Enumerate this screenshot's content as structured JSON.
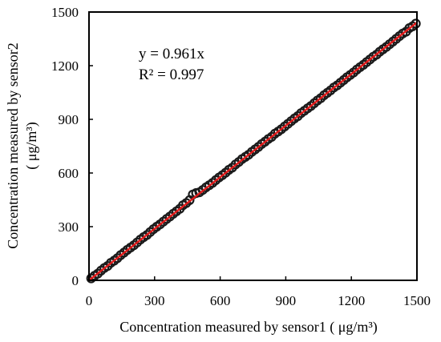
{
  "chart_data": {
    "type": "scatter",
    "title": "",
    "xlabel": "Concentration measured by sensor1 ( μg/m³)",
    "ylabel_line1": "Concentration measured by sensor2",
    "ylabel_line2": "( μg/m³)",
    "xlim": [
      0,
      1500
    ],
    "ylim": [
      0,
      1500
    ],
    "xticks": [
      "0",
      "300",
      "600",
      "900",
      "1200",
      "1500"
    ],
    "yticks": [
      "0",
      "300",
      "600",
      "900",
      "1200",
      "1500"
    ],
    "grid": false,
    "legend": "none",
    "marker": "open-circle",
    "marker_color": "#1a1a1a",
    "fit_line_color": "#e01b1b",
    "fit": {
      "slope": 0.961,
      "x_range": [
        0,
        1500
      ]
    },
    "annotations": [
      "y = 0.961x",
      "R² = 0.997"
    ],
    "series": [
      {
        "x": [
          10,
          25,
          40,
          55,
          70,
          85,
          100,
          115,
          130,
          145,
          160,
          175,
          190,
          205,
          220,
          235,
          250,
          265,
          280,
          295,
          310,
          325,
          340,
          355,
          370,
          385,
          400,
          415,
          430,
          445,
          460,
          475,
          490,
          505,
          520,
          535,
          550,
          565,
          580,
          595,
          610,
          625,
          640,
          655,
          670,
          685,
          700,
          715,
          730,
          745,
          760,
          775,
          790,
          805,
          820,
          835,
          850,
          865,
          880,
          895,
          910,
          925,
          940,
          955,
          970,
          985,
          1000,
          1015,
          1030,
          1045,
          1060,
          1075,
          1090,
          1105,
          1120,
          1135,
          1150,
          1165,
          1180,
          1195,
          1210,
          1225,
          1240,
          1255,
          1270,
          1285,
          1300,
          1315,
          1330,
          1345,
          1360,
          1375,
          1390,
          1405,
          1420,
          1435,
          1450,
          1465,
          1480,
          1495
        ],
        "y": [
          11,
          25,
          37,
          54,
          69,
          80,
          98,
          110,
          124,
          141,
          155,
          170,
          183,
          196,
          212,
          228,
          242,
          254,
          270,
          286,
          300,
          313,
          328,
          343,
          357,
          372,
          386,
          400,
          420,
          432,
          448,
          480,
          488,
          492,
          505,
          520,
          532,
          545,
          560,
          575,
          588,
          602,
          618,
          630,
          648,
          662,
          678,
          690,
          702,
          718,
          732,
          746,
          762,
          775,
          790,
          802,
          820,
          832,
          845,
          860,
          875,
          890,
          905,
          918,
          935,
          948,
          962,
          975,
          990,
          1005,
          1018,
          1035,
          1048,
          1062,
          1078,
          1090,
          1105,
          1120,
          1135,
          1148,
          1162,
          1178,
          1192,
          1205,
          1220,
          1235,
          1250,
          1262,
          1278,
          1292,
          1305,
          1320,
          1335,
          1350,
          1365,
          1380,
          1390,
          1410,
          1420,
          1435
        ]
      }
    ]
  }
}
